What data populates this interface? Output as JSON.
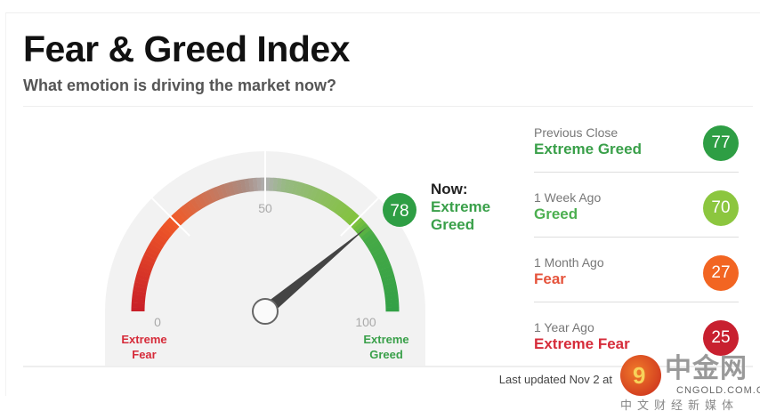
{
  "header": {
    "title": "Fear & Greed Index",
    "subtitle": "What emotion is driving the market now?"
  },
  "gauge": {
    "value": 78,
    "min": 0,
    "max": 100,
    "tick_labels": {
      "min": "0",
      "mid": "50",
      "max": "100"
    },
    "left_label": [
      "Extreme",
      "Fear"
    ],
    "right_label": [
      "Extreme",
      "Greed"
    ],
    "now_label": "Now:",
    "now_value": [
      "Extreme",
      "Greed"
    ],
    "now_color": "#2e9e44"
  },
  "history": [
    {
      "label": "Previous Close",
      "rating": "Extreme Greed",
      "value": "77",
      "color": "#2e9e44",
      "text_color": "#3aa04a"
    },
    {
      "label": "1 Week Ago",
      "rating": "Greed",
      "value": "70",
      "color": "#8cc63f",
      "text_color": "#4caf50"
    },
    {
      "label": "1 Month Ago",
      "rating": "Fear",
      "value": "27",
      "color": "#f26522",
      "text_color": "#e5533b"
    },
    {
      "label": "1 Year Ago",
      "rating": "Extreme Fear",
      "value": "25",
      "color": "#c8202f",
      "text_color": "#d62c3a"
    }
  ],
  "footer": {
    "updated": "Last updated Nov 2 at"
  },
  "watermark": {
    "cn": "中金网",
    "domain": "CNGOLD.COM.CN",
    "sub": "中文财经新媒体"
  }
}
